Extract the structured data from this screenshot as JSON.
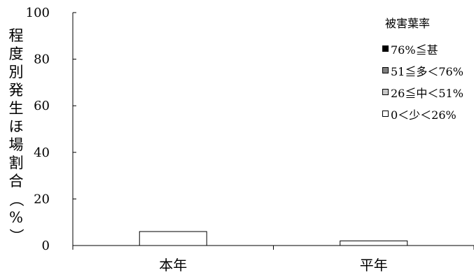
{
  "chart_data": {
    "type": "bar",
    "stacked": true,
    "categories": [
      "本年",
      "平年"
    ],
    "series": [
      {
        "name": "76%≦甚",
        "color": "#000000",
        "values": [
          0,
          0
        ]
      },
      {
        "name": "51≦多＜76%",
        "color": "#808080",
        "values": [
          0,
          0
        ]
      },
      {
        "name": "26≦中＜51%",
        "color": "#c8c8c8",
        "values": [
          0,
          0
        ]
      },
      {
        "name": "0＜少＜26%",
        "color": "#ffffff",
        "values": [
          6,
          2
        ]
      }
    ],
    "ylabel_chars": [
      "程",
      "度",
      "別",
      "発",
      "生",
      "ほ",
      "場",
      "割",
      "合",
      "（",
      "%",
      "）"
    ],
    "legend_title": "被害葉率",
    "yticks": [
      "0",
      "20",
      "40",
      "60",
      "80",
      "100"
    ],
    "ylim": [
      0,
      100
    ],
    "grid": false,
    "legend_position": "top-right"
  }
}
